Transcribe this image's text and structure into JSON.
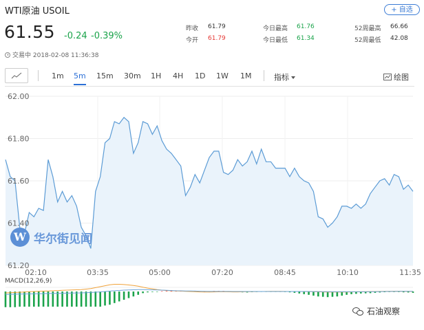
{
  "header": {
    "title": "WTI原油 USOIL",
    "add_watch_label": "+ 自选",
    "price": "61.55",
    "change": "-0.24",
    "change_pct": "-0.39%",
    "status": "交易中 2018-02-08 11:36:38"
  },
  "stats": [
    {
      "label": "昨收",
      "value": "61.79",
      "tone": "nu"
    },
    {
      "label": "今开",
      "value": "61.79",
      "tone": "up"
    },
    {
      "label": "今日最高",
      "value": "61.76",
      "tone": "dn"
    },
    {
      "label": "今日最低",
      "value": "61.34",
      "tone": "dn"
    },
    {
      "label": "52周最高",
      "value": "66.66",
      "tone": "nu"
    },
    {
      "label": "52周最低",
      "value": "42.08",
      "tone": "nu"
    }
  ],
  "toolbar": {
    "periods": [
      "1m",
      "5m",
      "15m",
      "30m",
      "1H",
      "4H",
      "1D",
      "1W",
      "1M"
    ],
    "active_period": "5m",
    "indicator_label": "指标",
    "draw_label": "绘图"
  },
  "watermark": {
    "logo_letter": "W",
    "text": "华尔街见闻"
  },
  "macd_label": "MACD(12,26,9)",
  "footer_brand": "石油观察",
  "colors": {
    "line": "#5b9bd5",
    "fill": "#eaf3fb",
    "up": "#e53935",
    "down": "#1aa34a",
    "accent": "#2b6fd6"
  },
  "chart_data": {
    "type": "line",
    "title": "",
    "xlabel": "",
    "ylabel": "",
    "ylim": [
      61.2,
      62.0
    ],
    "y_ticks": [
      "62.00",
      "61.80",
      "61.60",
      "61.40",
      "61.20"
    ],
    "x_ticks": [
      "02:10",
      "03:35",
      "05:00",
      "07:20",
      "08:45",
      "10:10",
      "11:35"
    ],
    "values": [
      61.7,
      61.62,
      61.6,
      61.38,
      61.35,
      61.45,
      61.43,
      61.47,
      61.46,
      61.7,
      61.62,
      61.5,
      61.55,
      61.5,
      61.53,
      61.48,
      61.38,
      61.34,
      61.28,
      61.55,
      61.62,
      61.78,
      61.8,
      61.88,
      61.87,
      61.9,
      61.88,
      61.73,
      61.78,
      61.88,
      61.87,
      61.82,
      61.86,
      61.79,
      61.75,
      61.73,
      61.7,
      61.67,
      61.53,
      61.57,
      61.63,
      61.59,
      61.65,
      61.71,
      61.74,
      61.74,
      61.64,
      61.63,
      61.65,
      61.7,
      61.67,
      61.69,
      61.74,
      61.68,
      61.75,
      61.69,
      61.69,
      61.66,
      61.66,
      61.66,
      61.62,
      61.66,
      61.62,
      61.6,
      61.59,
      61.55,
      61.43,
      61.42,
      61.38,
      61.4,
      61.43,
      61.48,
      61.48,
      61.47,
      61.49,
      61.47,
      61.49,
      61.54,
      61.57,
      61.6,
      61.61,
      61.58,
      61.63,
      61.62,
      61.56,
      61.58,
      61.55
    ]
  },
  "macd_data": {
    "hist": [
      -9.5,
      -9.5,
      -9.5,
      -9.2,
      -9.2,
      -9.2,
      -9.2,
      -9.2,
      -9.2,
      -9.2,
      -9.2,
      -9.2,
      -9.2,
      -9.2,
      -9.2,
      -9.2,
      -9.2,
      -9.2,
      -9.2,
      -9.2,
      -9.2,
      -8.5,
      -8,
      -7,
      -6,
      -5,
      -4,
      -3,
      -2,
      -1,
      -0.5,
      -0.3,
      -0.2,
      0.2,
      0.3,
      0.4,
      0.4,
      0.3,
      0.3,
      0.3,
      0.2,
      0.2,
      0.1,
      0.1,
      0.3,
      0.3,
      0.3,
      -0.2,
      -0.3,
      -0.4,
      -0.5,
      -0.6,
      -0.4,
      -0.3,
      -0.2,
      -0.2,
      -0.1,
      -0.1,
      -0.2,
      -0.3,
      -0.5,
      -0.8,
      -1.2,
      -1.6,
      -2,
      -2.5,
      -3,
      -3.2,
      -3.4,
      -3.2,
      -3,
      -2.5,
      -2,
      -1.6,
      -1.4,
      -1.2,
      -1.1,
      -1,
      -0.8,
      -0.6,
      -0.4,
      -0.3,
      -0.3,
      -0.3,
      -0.5,
      -0.6,
      -0.8
    ],
    "dif": [
      -1.5,
      -1.2,
      -1,
      -0.8,
      -0.5,
      -0.2,
      0,
      0.2,
      0.4,
      0.6,
      0.8,
      1,
      1.2,
      1.4,
      1.6,
      1.8,
      2,
      2.5,
      3,
      4,
      5,
      6,
      7,
      7.5,
      7.5,
      7.2,
      6.8,
      6.2,
      5.5,
      4.5,
      3.5,
      2.8,
      2,
      1.4,
      1,
      0.8,
      0.6,
      0.4,
      0.2,
      0,
      -0.2,
      -0.4,
      -0.5,
      -0.5,
      -0.4,
      -0.3,
      -0.2,
      -0.3,
      -0.4,
      -0.4,
      -0.3,
      -0.2,
      -0.2,
      -0.1,
      0,
      0.1,
      0.2,
      0.2,
      0.2,
      0.1,
      0,
      0,
      0,
      -0.1,
      -0.1,
      -0.2,
      -0.3,
      -0.4,
      -0.5,
      -0.6,
      -0.6,
      -0.6,
      -0.5,
      -0.4,
      -0.3,
      -0.3,
      -0.2,
      -0.1,
      0,
      0.1,
      0.2,
      0.2,
      0.3,
      0.3,
      0.2,
      0.2,
      0.1
    ],
    "dea": [
      -3,
      -2.9,
      -2.8,
      -2.7,
      -2.6,
      -2.5,
      -2.4,
      -2.3,
      -2.2,
      -2.1,
      -2,
      -1.9,
      -1.8,
      -1.7,
      -1.6,
      -1.5,
      -1.4,
      -1.2,
      -1,
      -0.7,
      -0.4,
      0,
      0.4,
      0.8,
      1.1,
      1.4,
      1.6,
      1.8,
      1.9,
      1.9,
      1.8,
      1.7,
      1.6,
      1.4,
      1.2,
      1,
      0.8,
      0.7,
      0.6,
      0.5,
      0.4,
      0.3,
      0.2,
      0.1,
      0.1,
      0.1,
      0.1,
      0.1,
      0,
      0,
      0,
      0,
      0,
      0,
      0,
      0,
      0,
      0,
      0,
      0,
      0,
      0,
      0,
      0,
      0,
      -0.1,
      -0.1,
      -0.2,
      -0.2,
      -0.3,
      -0.3,
      -0.3,
      -0.3,
      -0.3,
      -0.3,
      -0.3,
      -0.3,
      -0.2,
      -0.2,
      -0.1,
      0,
      0.1,
      0.1,
      0.2,
      0.2,
      0.2,
      0.2
    ]
  }
}
